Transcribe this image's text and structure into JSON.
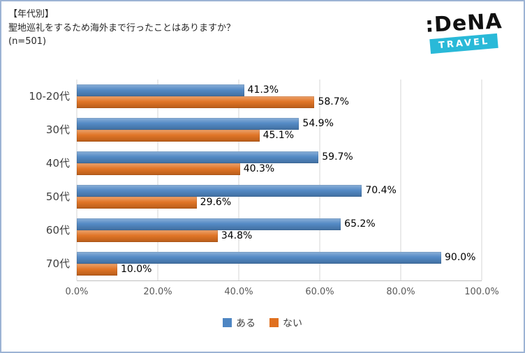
{
  "header": {
    "title_line1": "【年代別】",
    "title_line2": "聖地巡礼をするため海外まで行ったことはありますか？",
    "title_line3": "(n=501)"
  },
  "logo": {
    "brand": ":DeNA",
    "sub": "TRAVEL",
    "travel_bg_color": "#29b9d8"
  },
  "chart_data": {
    "type": "bar",
    "orientation": "horizontal",
    "title": "【年代別】聖地巡礼をするため海外まで行ったことはありますか？ (n=501)",
    "categories": [
      "10-20代",
      "30代",
      "40代",
      "50代",
      "60代",
      "70代"
    ],
    "series": [
      {
        "name": "ある",
        "color": "#4e86c3",
        "values": [
          41.3,
          54.9,
          59.7,
          70.4,
          65.2,
          90.0
        ]
      },
      {
        "name": "ない",
        "color": "#e0701f",
        "values": [
          58.7,
          45.1,
          40.3,
          29.6,
          34.8,
          10.0
        ]
      }
    ],
    "value_label_suffix": "%",
    "xlim": [
      0,
      100
    ],
    "x_ticks": [
      "0.0%",
      "20.0%",
      "40.0%",
      "60.0%",
      "80.0%",
      "100.0%"
    ],
    "grid": true,
    "legend_position": "bottom"
  }
}
